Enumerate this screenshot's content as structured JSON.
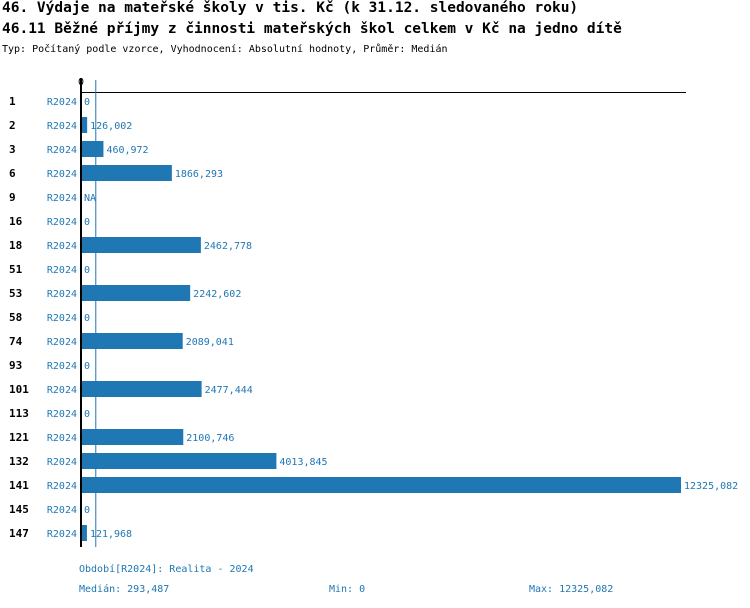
{
  "title": "46. Výdaje na mateřské školy v tis. Kč (k 31.12. sledovaného roku)",
  "subtitle": "46.11 Běžné příjmy z činnosti mateřských škol celkem v Kč na jedno dítě",
  "info": "Typ: Počítaný podle vzorce, Vyhodnocení: Absolutní hodnoty, Průměr: Medián",
  "colors": {
    "bar": "#1f77b4",
    "axis": "#000000"
  },
  "chart_data": {
    "type": "bar",
    "orientation": "horizontal",
    "xtick_label": "0",
    "xlim": [
      0,
      12325.082
    ],
    "median": 293.487,
    "rows": [
      {
        "id": "1",
        "period": "R2024",
        "value": 0,
        "label": "0"
      },
      {
        "id": "2",
        "period": "R2024",
        "value": 126.002,
        "label": "126,002"
      },
      {
        "id": "3",
        "period": "R2024",
        "value": 460.972,
        "label": "460,972"
      },
      {
        "id": "6",
        "period": "R2024",
        "value": 1866.293,
        "label": "1866,293"
      },
      {
        "id": "9",
        "period": "R2024",
        "value": null,
        "label": "NA"
      },
      {
        "id": "16",
        "period": "R2024",
        "value": 0,
        "label": "0"
      },
      {
        "id": "18",
        "period": "R2024",
        "value": 2462.778,
        "label": "2462,778"
      },
      {
        "id": "51",
        "period": "R2024",
        "value": 0,
        "label": "0"
      },
      {
        "id": "53",
        "period": "R2024",
        "value": 2242.602,
        "label": "2242,602"
      },
      {
        "id": "58",
        "period": "R2024",
        "value": 0,
        "label": "0"
      },
      {
        "id": "74",
        "period": "R2024",
        "value": 2089.041,
        "label": "2089,041"
      },
      {
        "id": "93",
        "period": "R2024",
        "value": 0,
        "label": "0"
      },
      {
        "id": "101",
        "period": "R2024",
        "value": 2477.444,
        "label": "2477,444"
      },
      {
        "id": "113",
        "period": "R2024",
        "value": 0,
        "label": "0"
      },
      {
        "id": "121",
        "period": "R2024",
        "value": 2100.746,
        "label": "2100,746"
      },
      {
        "id": "132",
        "period": "R2024",
        "value": 4013.845,
        "label": "4013,845"
      },
      {
        "id": "141",
        "period": "R2024",
        "value": 12325.082,
        "label": "12325,082"
      },
      {
        "id": "145",
        "period": "R2024",
        "value": 0,
        "label": "0"
      },
      {
        "id": "147",
        "period": "R2024",
        "value": 121.968,
        "label": "121,968"
      }
    ]
  },
  "footer": {
    "period": "Období[R2024]: Realita - 2024",
    "median": "Medián: 293,487",
    "min": "Min: 0",
    "max": "Max: 12325,082"
  }
}
